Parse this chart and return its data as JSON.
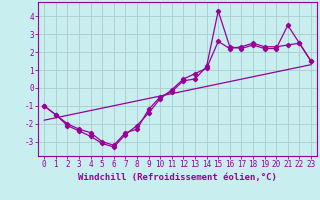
{
  "xlabel": "Windchill (Refroidissement éolien,°C)",
  "bg_color": "#c8eef0",
  "line_color": "#990099",
  "grid_color": "#aacccc",
  "xlim": [
    -0.5,
    23.5
  ],
  "ylim": [
    -3.8,
    4.8
  ],
  "xticks": [
    0,
    1,
    2,
    3,
    4,
    5,
    6,
    7,
    8,
    9,
    10,
    11,
    12,
    13,
    14,
    15,
    16,
    17,
    18,
    19,
    20,
    21,
    22,
    23
  ],
  "yticks": [
    -3,
    -2,
    -1,
    0,
    1,
    2,
    3,
    4
  ],
  "line1_x": [
    0,
    1,
    2,
    3,
    4,
    5,
    6,
    7,
    8,
    9,
    10,
    11,
    12,
    13,
    14,
    15,
    16,
    17,
    18,
    19,
    20,
    21,
    22,
    23
  ],
  "line1_y": [
    -1.0,
    -1.5,
    -2.0,
    -2.3,
    -2.5,
    -3.0,
    -3.2,
    -2.5,
    -2.3,
    -1.2,
    -0.5,
    -0.2,
    0.4,
    0.5,
    1.2,
    4.3,
    2.3,
    2.2,
    2.4,
    2.2,
    2.2,
    3.5,
    2.5,
    1.5
  ],
  "line2_x": [
    0,
    1,
    2,
    3,
    4,
    5,
    6,
    7,
    8,
    9,
    10,
    11,
    12,
    13,
    14,
    15,
    16,
    17,
    18,
    19,
    20,
    21,
    22,
    23
  ],
  "line2_y": [
    -1.0,
    -1.5,
    -2.1,
    -2.4,
    -2.7,
    -3.1,
    -3.3,
    -2.6,
    -2.1,
    -1.4,
    -0.6,
    -0.1,
    0.5,
    0.8,
    1.1,
    2.6,
    2.2,
    2.3,
    2.5,
    2.3,
    2.3,
    2.4,
    2.5,
    1.5
  ],
  "trend_x": [
    0,
    23
  ],
  "trend_y": [
    -1.8,
    1.3
  ],
  "tick_font_size": 5.5,
  "xlabel_font_size": 6.5
}
